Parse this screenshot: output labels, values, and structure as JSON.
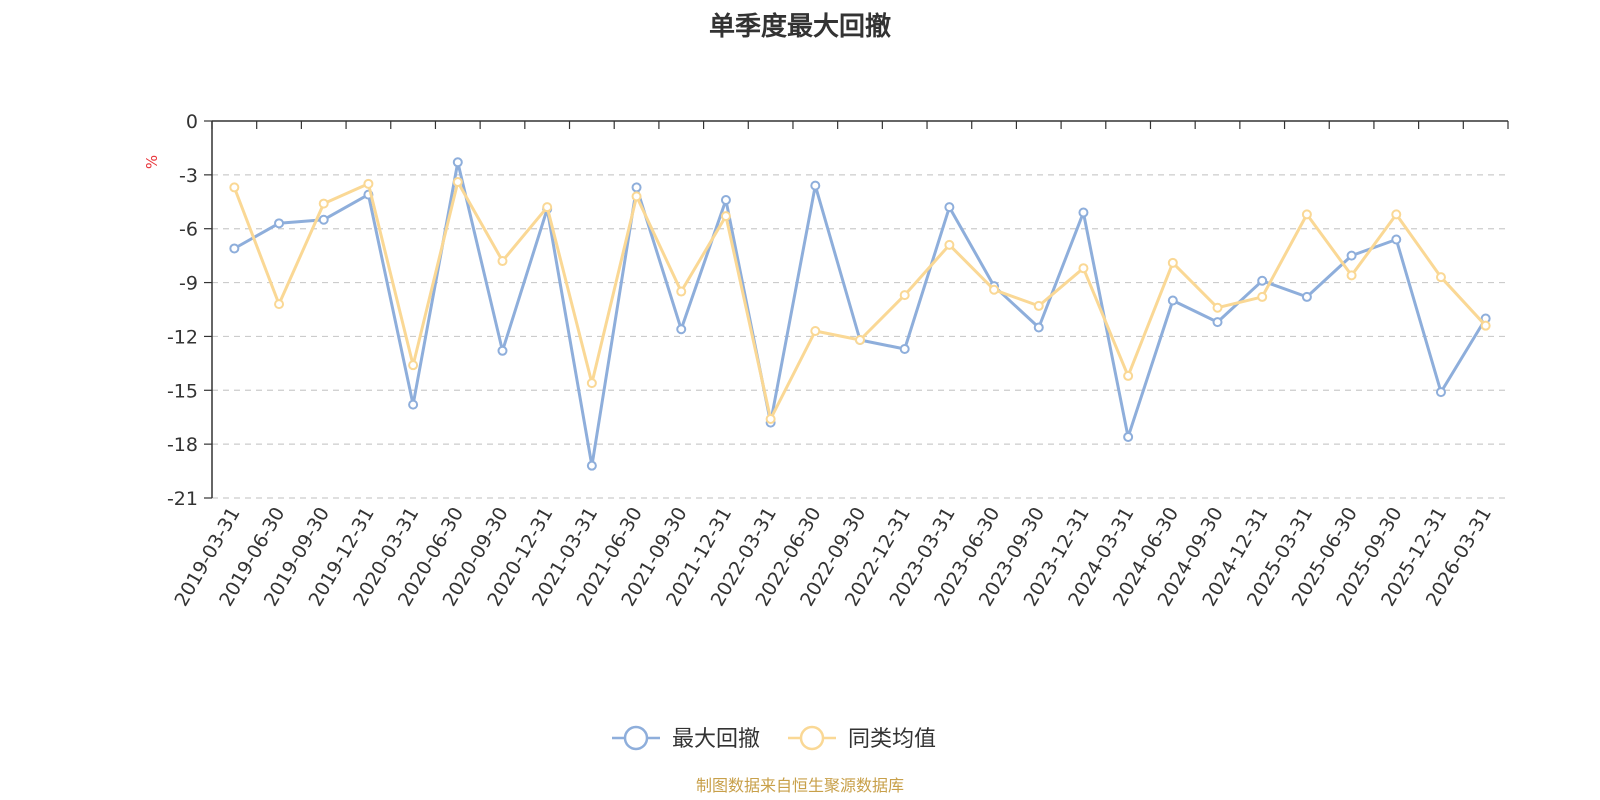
{
  "chart_data": {
    "type": "line",
    "title": "单季度最大回撤",
    "ylabel": "%",
    "ylim": [
      -21,
      0
    ],
    "yticks": [
      0,
      -3,
      -6,
      -9,
      -12,
      -15,
      -18,
      -21
    ],
    "grid": true,
    "legend_position": "bottom",
    "x": [
      "2019-03-31",
      "2019-06-30",
      "2019-09-30",
      "2019-12-31",
      "2020-03-31",
      "2020-06-30",
      "2020-09-30",
      "2020-12-31",
      "2021-03-31",
      "2021-06-30",
      "2021-09-30",
      "2021-12-31",
      "2022-03-31",
      "2022-06-30",
      "2022-09-30",
      "2022-12-31",
      "2023-03-31",
      "2023-06-30",
      "2023-09-30",
      "2023-12-31",
      "2024-03-31",
      "2024-06-30",
      "2024-09-30",
      "2024-12-31",
      "2025-03-31",
      "2025-06-30",
      "2025-09-30",
      "2025-12-31",
      "2026-03-31"
    ],
    "series": [
      {
        "name": "最大回撤",
        "color": "#8eaedb",
        "values": [
          -7.1,
          -5.7,
          -5.5,
          -4.1,
          -15.8,
          -2.3,
          -12.8,
          -4.9,
          -19.2,
          -3.7,
          -11.6,
          -4.4,
          -16.8,
          -3.6,
          -12.2,
          -12.7,
          -4.8,
          -9.2,
          -11.5,
          -5.1,
          -17.6,
          -10.0,
          -11.2,
          -8.9,
          -9.8,
          -7.5,
          -6.6,
          -15.1,
          -11.0
        ]
      },
      {
        "name": "同类均值",
        "color": "#fad895",
        "values": [
          -3.7,
          -10.2,
          -4.6,
          -3.5,
          -13.6,
          -3.4,
          -7.8,
          -4.8,
          -14.6,
          -4.2,
          -9.5,
          -5.3,
          -16.6,
          -11.7,
          -12.2,
          -9.7,
          -6.9,
          -9.4,
          -10.3,
          -8.2,
          -14.2,
          -7.9,
          -10.4,
          -9.8,
          -5.2,
          -8.6,
          -5.2,
          -8.7,
          -11.4
        ]
      }
    ]
  },
  "source": {
    "text": "制图数据来自恒生聚源数据库",
    "color": "#c8a04a"
  }
}
